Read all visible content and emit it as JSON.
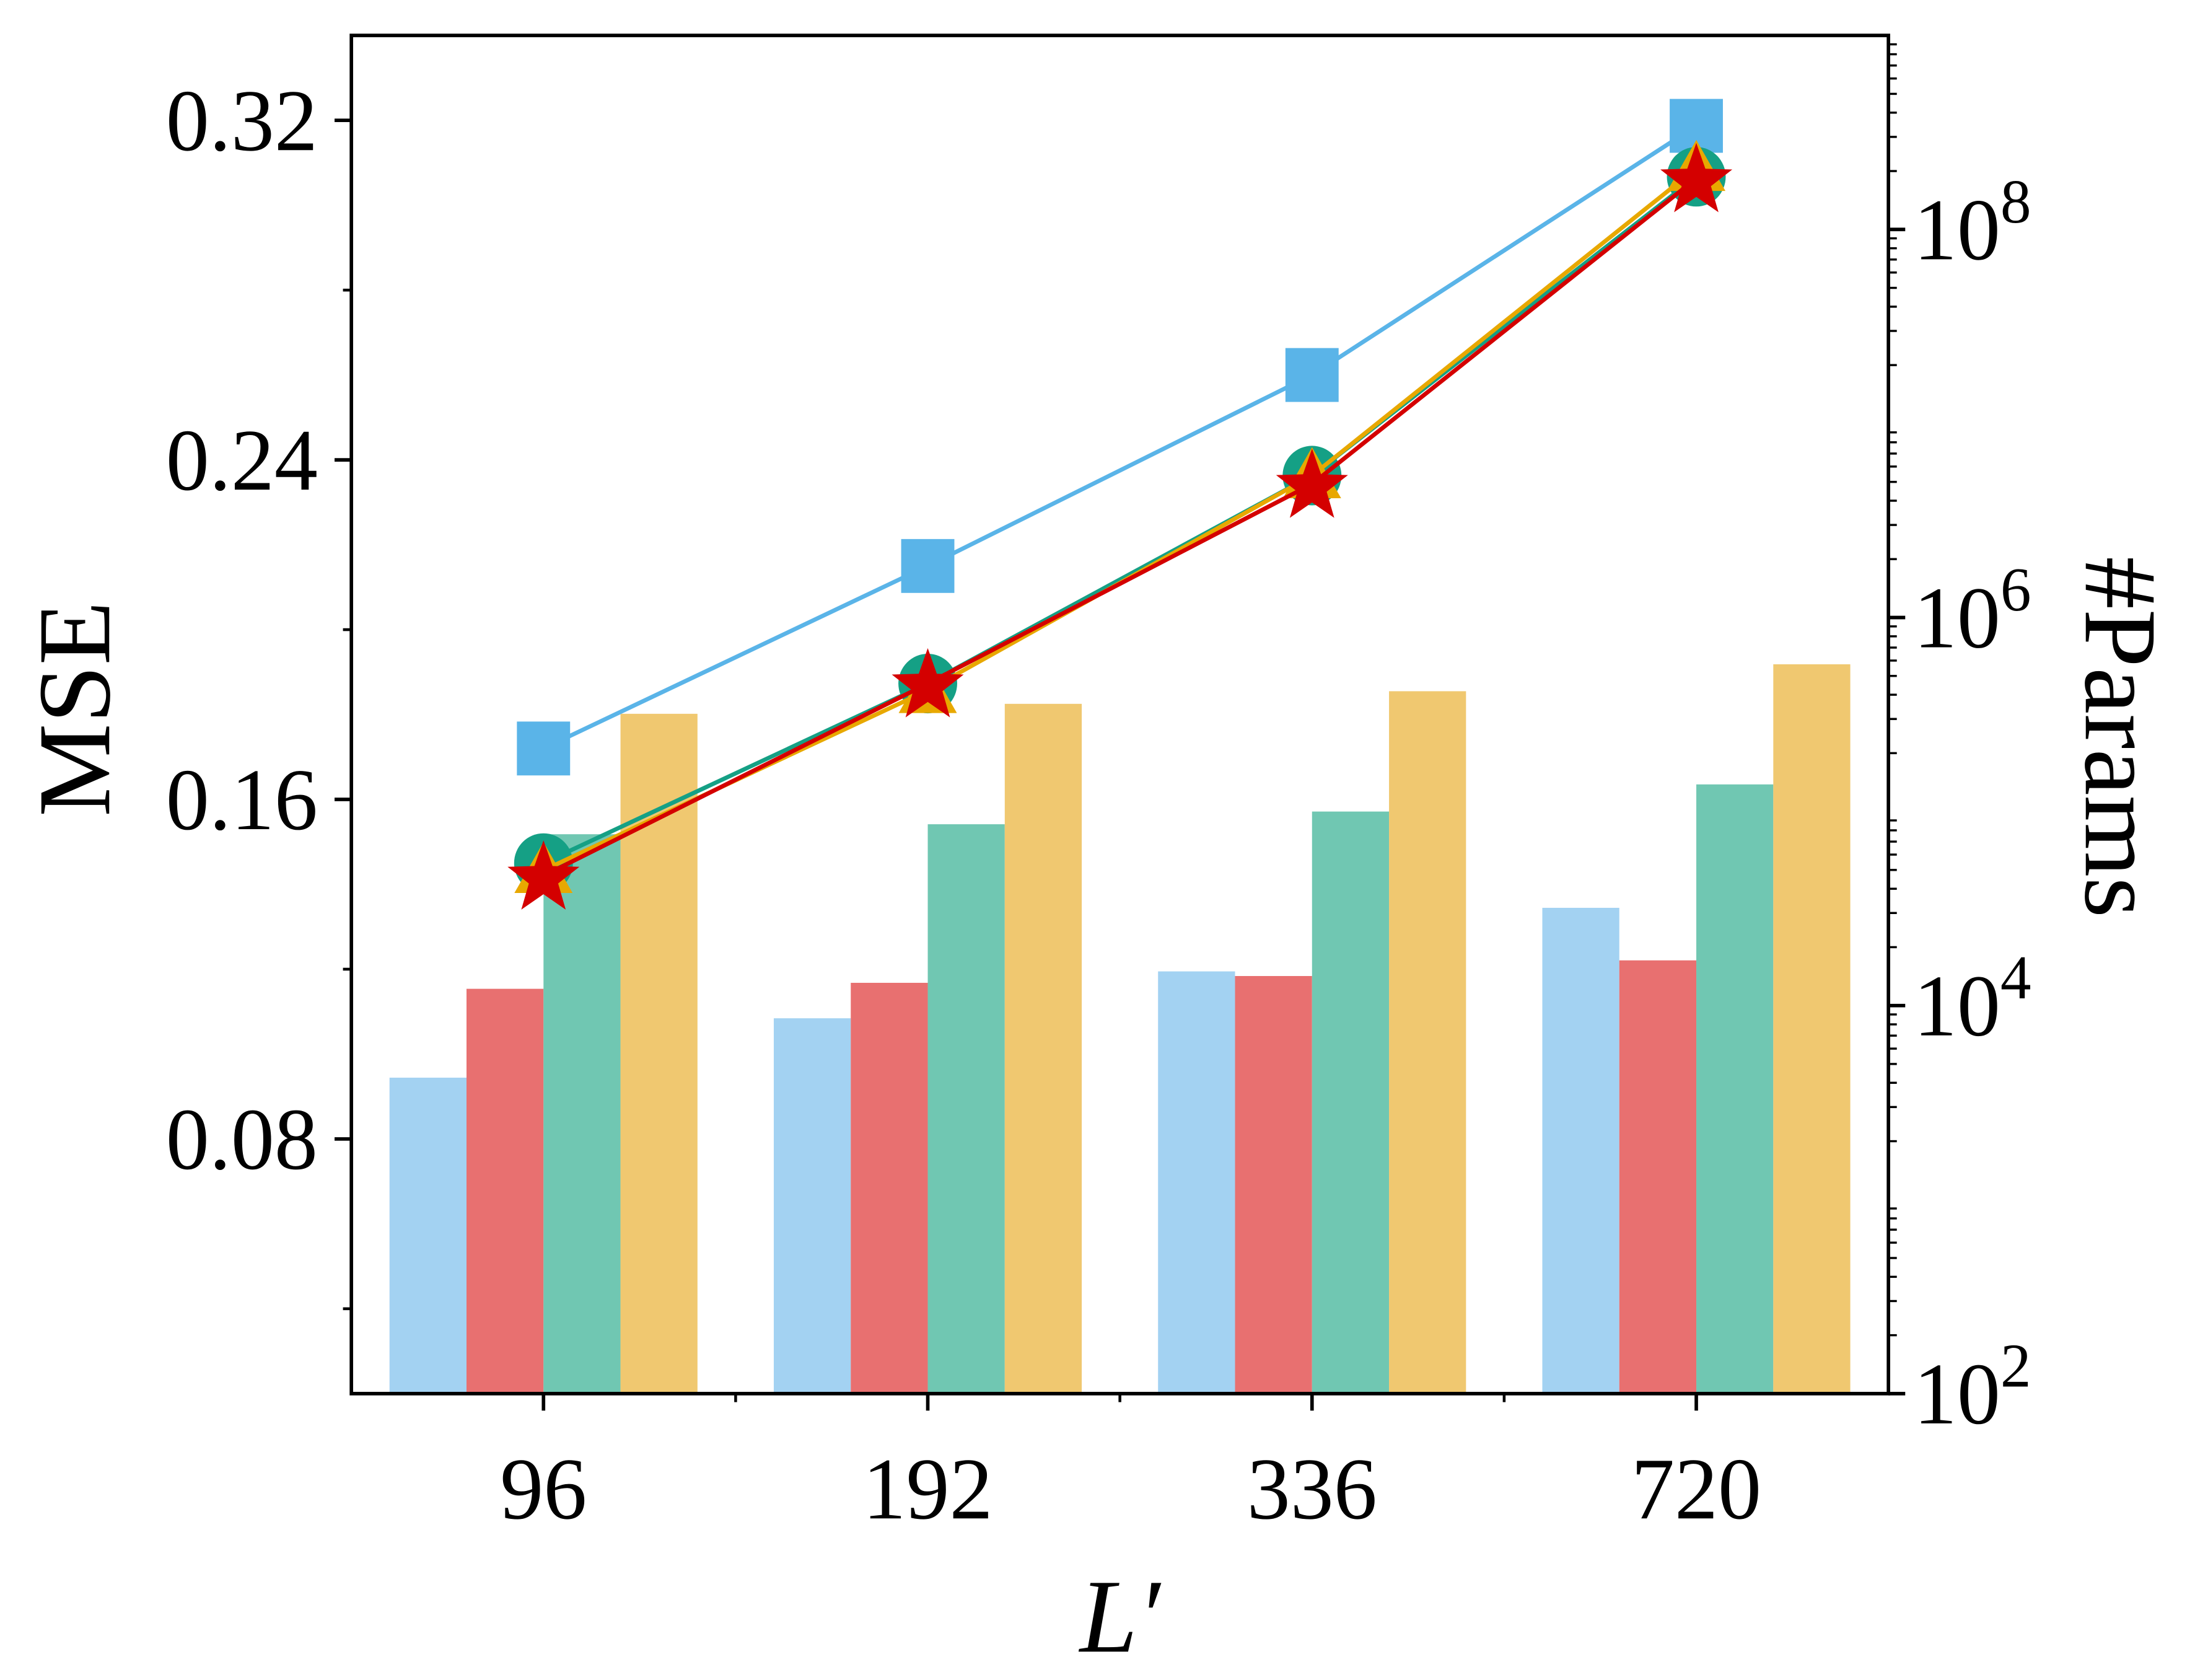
{
  "chart_data": {
    "type": "bar",
    "xlabel": "L′",
    "ylabel": "MSE",
    "y2label": "#Params",
    "categories": [
      "96",
      "192",
      "336",
      "720"
    ],
    "ylim": [
      0.02,
      0.34
    ],
    "yticks": [
      0.08,
      0.16,
      0.24,
      0.32
    ],
    "yminorticks": [
      0.04,
      0.12,
      0.2,
      0.28
    ],
    "y2lim": [
      100,
      1000000000
    ],
    "y2scale": "log",
    "y2ticks": [
      {
        "value": 100,
        "label": "10^2"
      },
      {
        "value": 10000,
        "label": "10^4"
      },
      {
        "value": 1000000,
        "label": "10^6"
      },
      {
        "value": 100000000,
        "label": "10^8"
      }
    ],
    "series": [
      {
        "type": "bar",
        "axis": "y2",
        "color": "#a3d2f2",
        "values": [
          4250,
          8600,
          15000,
          31900
        ]
      },
      {
        "type": "bar",
        "axis": "y2",
        "color": "#e87070",
        "values": [
          12200,
          13100,
          14200,
          17100
        ]
      },
      {
        "type": "bar",
        "axis": "y2",
        "color": "#70c7b2",
        "values": [
          76400,
          86000,
          100000,
          138000
        ]
      },
      {
        "type": "bar",
        "axis": "y2",
        "color": "#f0c870",
        "values": [
          319000,
          359000,
          417000,
          574000
        ]
      },
      {
        "type": "line",
        "marker": "square",
        "color": "#5ab4e8",
        "values": [
          0.172,
          0.215,
          0.26,
          0.3187
        ]
      },
      {
        "type": "line",
        "marker": "circle",
        "color": "#15a085",
        "values": [
          0.145,
          0.1873,
          0.2363,
          0.3067
        ]
      },
      {
        "type": "line",
        "marker": "triangle",
        "color": "#e8a800",
        "values": [
          0.1433,
          0.1857,
          0.2363,
          0.3087
        ]
      },
      {
        "type": "line",
        "marker": "star",
        "color": "#d40000",
        "values": [
          0.142,
          0.1873,
          0.2343,
          0.3063
        ]
      }
    ]
  }
}
